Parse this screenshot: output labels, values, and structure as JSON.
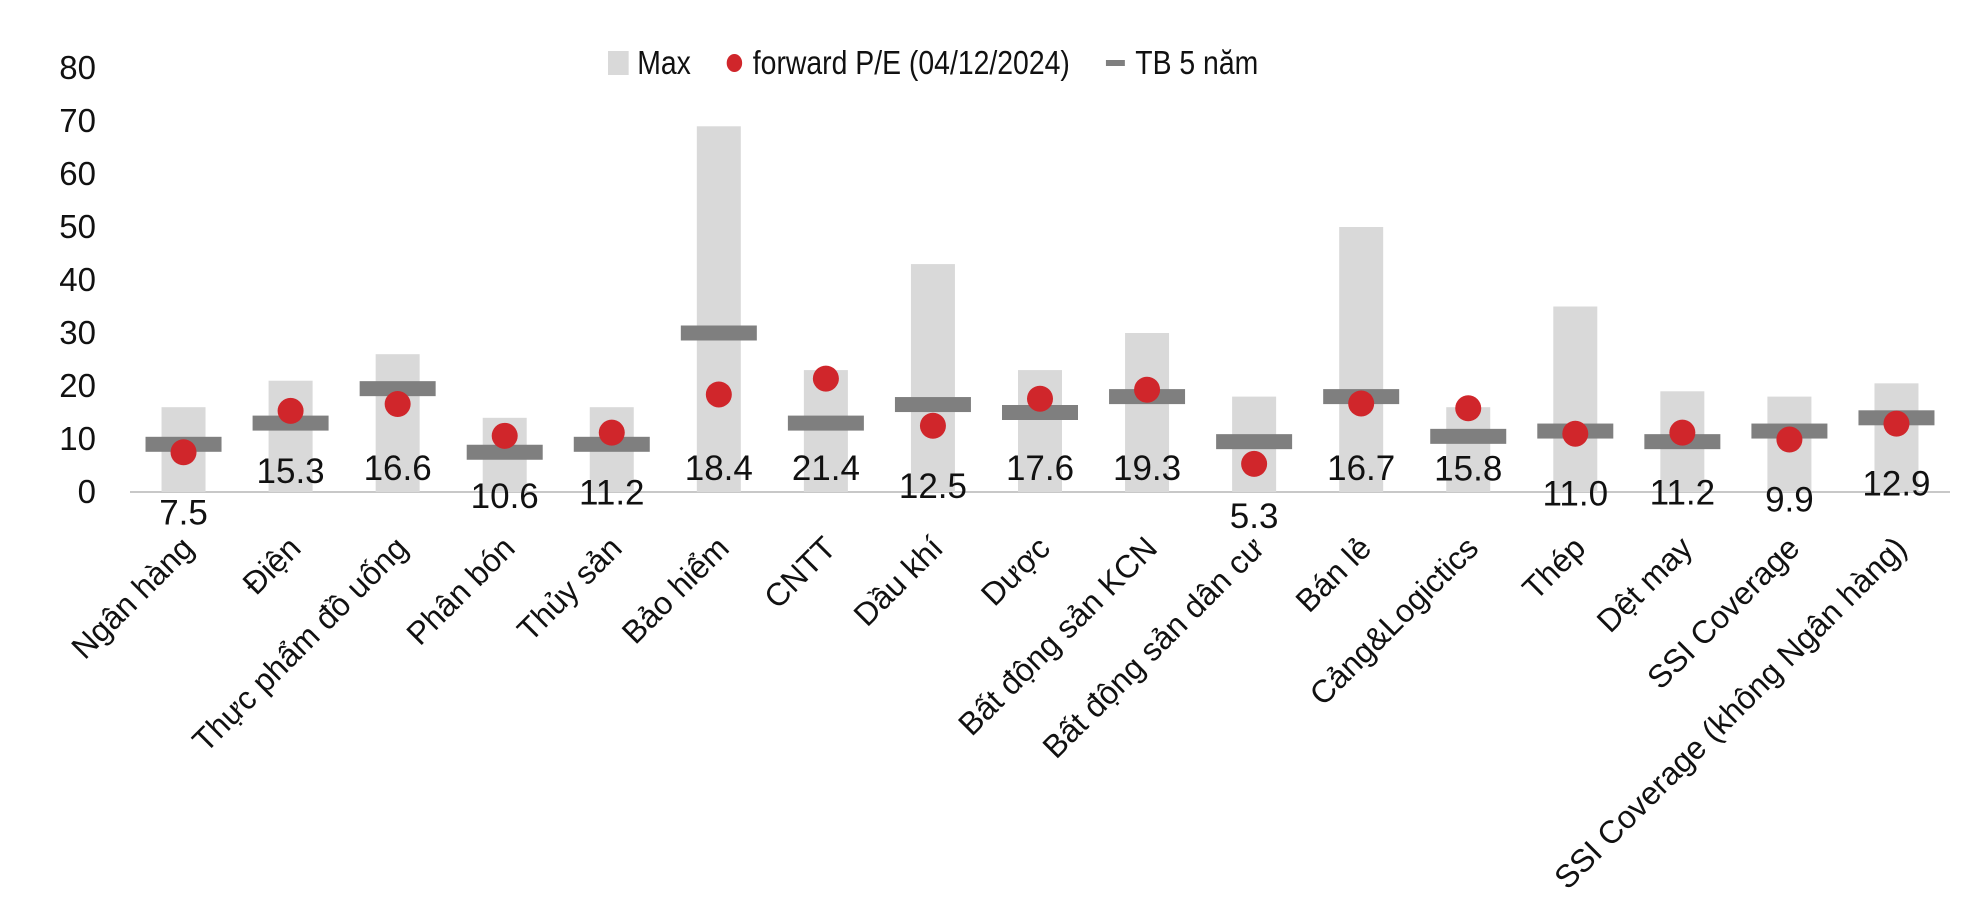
{
  "chart_data": {
    "type": "bar",
    "title": "",
    "xlabel": "",
    "ylabel": "",
    "ylim": [
      0,
      80
    ],
    "yticks": [
      0,
      10,
      20,
      30,
      40,
      50,
      60,
      70,
      80
    ],
    "grid": false,
    "legend_position": "top",
    "categories": [
      "Ngân hàng",
      "Điện",
      "Thực phẩm đồ uống",
      "Phân bón",
      "Thủy sản",
      "Bảo hiểm",
      "CNTT",
      "Dầu khí",
      "Dược",
      "Bất động sản KCN",
      "Bất động sản dân cư",
      "Bán lẻ",
      "Cảng&Logictics",
      "Thép",
      "Dệt may",
      "SSI Coverage",
      "SSI Coverage (không Ngân hàng)"
    ],
    "series": [
      {
        "name": "Max",
        "kind": "bar",
        "color": "#d9d9d9",
        "values": [
          16,
          21,
          26,
          14,
          16,
          69,
          23,
          43,
          23,
          30,
          18,
          50,
          16,
          35,
          19,
          18,
          20.5
        ]
      },
      {
        "name": "forward P/E (04/12/2024)",
        "kind": "marker",
        "color": "#d0262b",
        "values": [
          7.5,
          15.3,
          16.6,
          10.6,
          11.2,
          18.4,
          21.4,
          12.5,
          17.6,
          19.3,
          5.3,
          16.7,
          15.8,
          11.0,
          11.2,
          9.9,
          12.9
        ],
        "labels": [
          "7.5",
          "15.3",
          "16.6",
          "10.6",
          "11.2",
          "18.4",
          "21.4",
          "12.5",
          "17.6",
          "19.3",
          "5.3",
          "16.7",
          "15.8",
          "11.0",
          "11.2",
          "9.9",
          "12.9"
        ]
      },
      {
        "name": "TB 5 năm",
        "kind": "dash",
        "color": "#7f7f7f",
        "values": [
          9,
          13,
          19.5,
          7.5,
          9,
          30,
          13,
          16.5,
          15,
          18,
          9.5,
          18,
          10.5,
          11.5,
          9.5,
          11.5,
          14
        ]
      }
    ]
  }
}
